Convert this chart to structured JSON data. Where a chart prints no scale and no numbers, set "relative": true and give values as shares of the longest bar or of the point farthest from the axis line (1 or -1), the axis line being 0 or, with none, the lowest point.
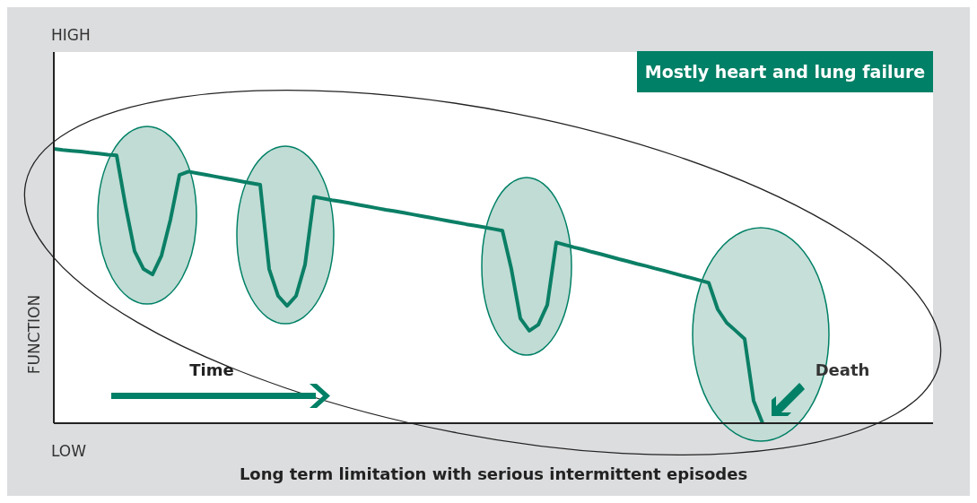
{
  "chart_data": {
    "type": "line",
    "relative": true,
    "title": "Mostly heart and lung failure",
    "xlabel": "Long term limitation with serious intermittent episodes",
    "ylabel": "FUNCTION",
    "annotations": [
      "HIGH",
      "LOW",
      "Time",
      "Death"
    ],
    "categories": [
      null,
      null,
      null,
      null,
      null,
      null,
      null,
      null,
      null,
      null,
      null,
      null,
      null,
      null,
      null,
      null,
      null,
      null,
      null,
      null,
      null,
      null,
      null,
      null,
      null,
      null,
      null,
      null,
      null,
      null,
      null,
      null,
      null,
      null,
      null,
      null,
      null,
      null,
      null,
      null,
      null,
      null,
      null,
      null,
      null,
      null,
      null,
      null,
      null,
      null,
      null,
      null,
      null,
      null,
      null,
      null,
      null,
      null,
      null,
      null,
      null,
      null,
      null,
      null,
      null,
      null,
      null,
      null,
      null,
      null,
      null,
      null,
      null,
      null,
      null,
      null,
      null,
      null,
      null,
      null,
      null,
      null,
      null,
      null,
      null,
      null,
      null,
      null,
      null,
      null,
      null,
      null,
      null,
      null,
      null,
      null,
      null,
      null,
      null
    ],
    "series": [
      {
        "color": "#0b7f66",
        "values": [
          1,
          0.996,
          0.993,
          0.99,
          0.986,
          0.983,
          0.979,
          0.976,
          0.791,
          0.627,
          0.562,
          0.542,
          0.611,
          0.742,
          0.905,
          0.917,
          0.911,
          0.905,
          0.899,
          0.893,
          0.887,
          0.881,
          0.875,
          0.869,
          0.562,
          0.464,
          0.428,
          0.464,
          0.578,
          0.825,
          0.819,
          0.813,
          0.808,
          0.802,
          0.796,
          0.79,
          0.784,
          0.778,
          0.773,
          0.767,
          0.761,
          0.755,
          0.749,
          0.743,
          0.737,
          0.731,
          0.725,
          0.72,
          0.714,
          0.708,
          0.702,
          0.562,
          0.382,
          0.337,
          0.359,
          0.431,
          0.659,
          0.65,
          0.641,
          0.633,
          0.624,
          0.616,
          0.607,
          0.598,
          0.59,
          0.581,
          0.573,
          0.564,
          0.556,
          0.547,
          0.538,
          0.53,
          0.521,
          0.512,
          0.415,
          0.366,
          0.337,
          0.307,
          0.082,
          0,
          null,
          null,
          null,
          null,
          null,
          null,
          null,
          null,
          null,
          null,
          null,
          null,
          null,
          null,
          null,
          null,
          null,
          null,
          null
        ]
      }
    ],
    "grid": false,
    "marker": "none",
    "line_style": "solid"
  }
}
